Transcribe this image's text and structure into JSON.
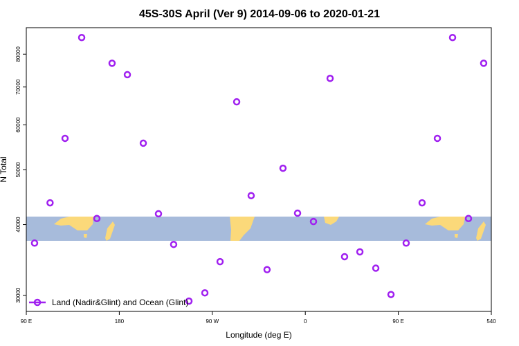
{
  "chart_data": {
    "type": "scatter",
    "title": "45S-30S April (Ver 9)   2014-09-06 to 2020-01-21",
    "x_label": "Longitude (deg E)",
    "y_label": "N Total",
    "y_log": true,
    "legend": "bottom-left",
    "xlim": [
      90,
      540
    ],
    "ylim": [
      28100,
      89100
    ],
    "xticks": [
      {
        "value": 90,
        "label": "90 E"
      },
      180,
      {
        "value": 270,
        "label": "90 W"
      },
      {
        "value": 360,
        "label": "0"
      },
      {
        "value": 450,
        "label": "90 E"
      },
      540
    ],
    "yticks": [
      30000,
      40000,
      50000,
      60000,
      70000,
      80000
    ],
    "series": [
      {
        "name": "Land (Nadir&Glint) and Ocean (Glint)",
        "color": "#a020f0",
        "x": [
          98,
          113,
          127.5,
          143.6,
          158.3,
          173,
          187.8,
          203.2,
          217.9,
          232.6,
          247.4,
          262.8,
          277.5,
          293.6,
          307.6,
          323,
          338.4,
          352.5,
          367.9,
          384,
          398,
          412.8,
          428.2,
          442.9,
          457.6,
          473,
          487.8,
          502.5,
          517.9,
          532.6
        ],
        "values": [
          37100,
          43700,
          56800,
          85600,
          41000,
          77100,
          73600,
          55700,
          41800,
          36900,
          29300,
          30300,
          34400,
          65900,
          45000,
          33300,
          50300,
          41900,
          40500,
          72500,
          35100,
          35800,
          33500,
          30100,
          37100,
          43700,
          56800,
          85600,
          41000,
          77100
        ]
      }
    ]
  }
}
